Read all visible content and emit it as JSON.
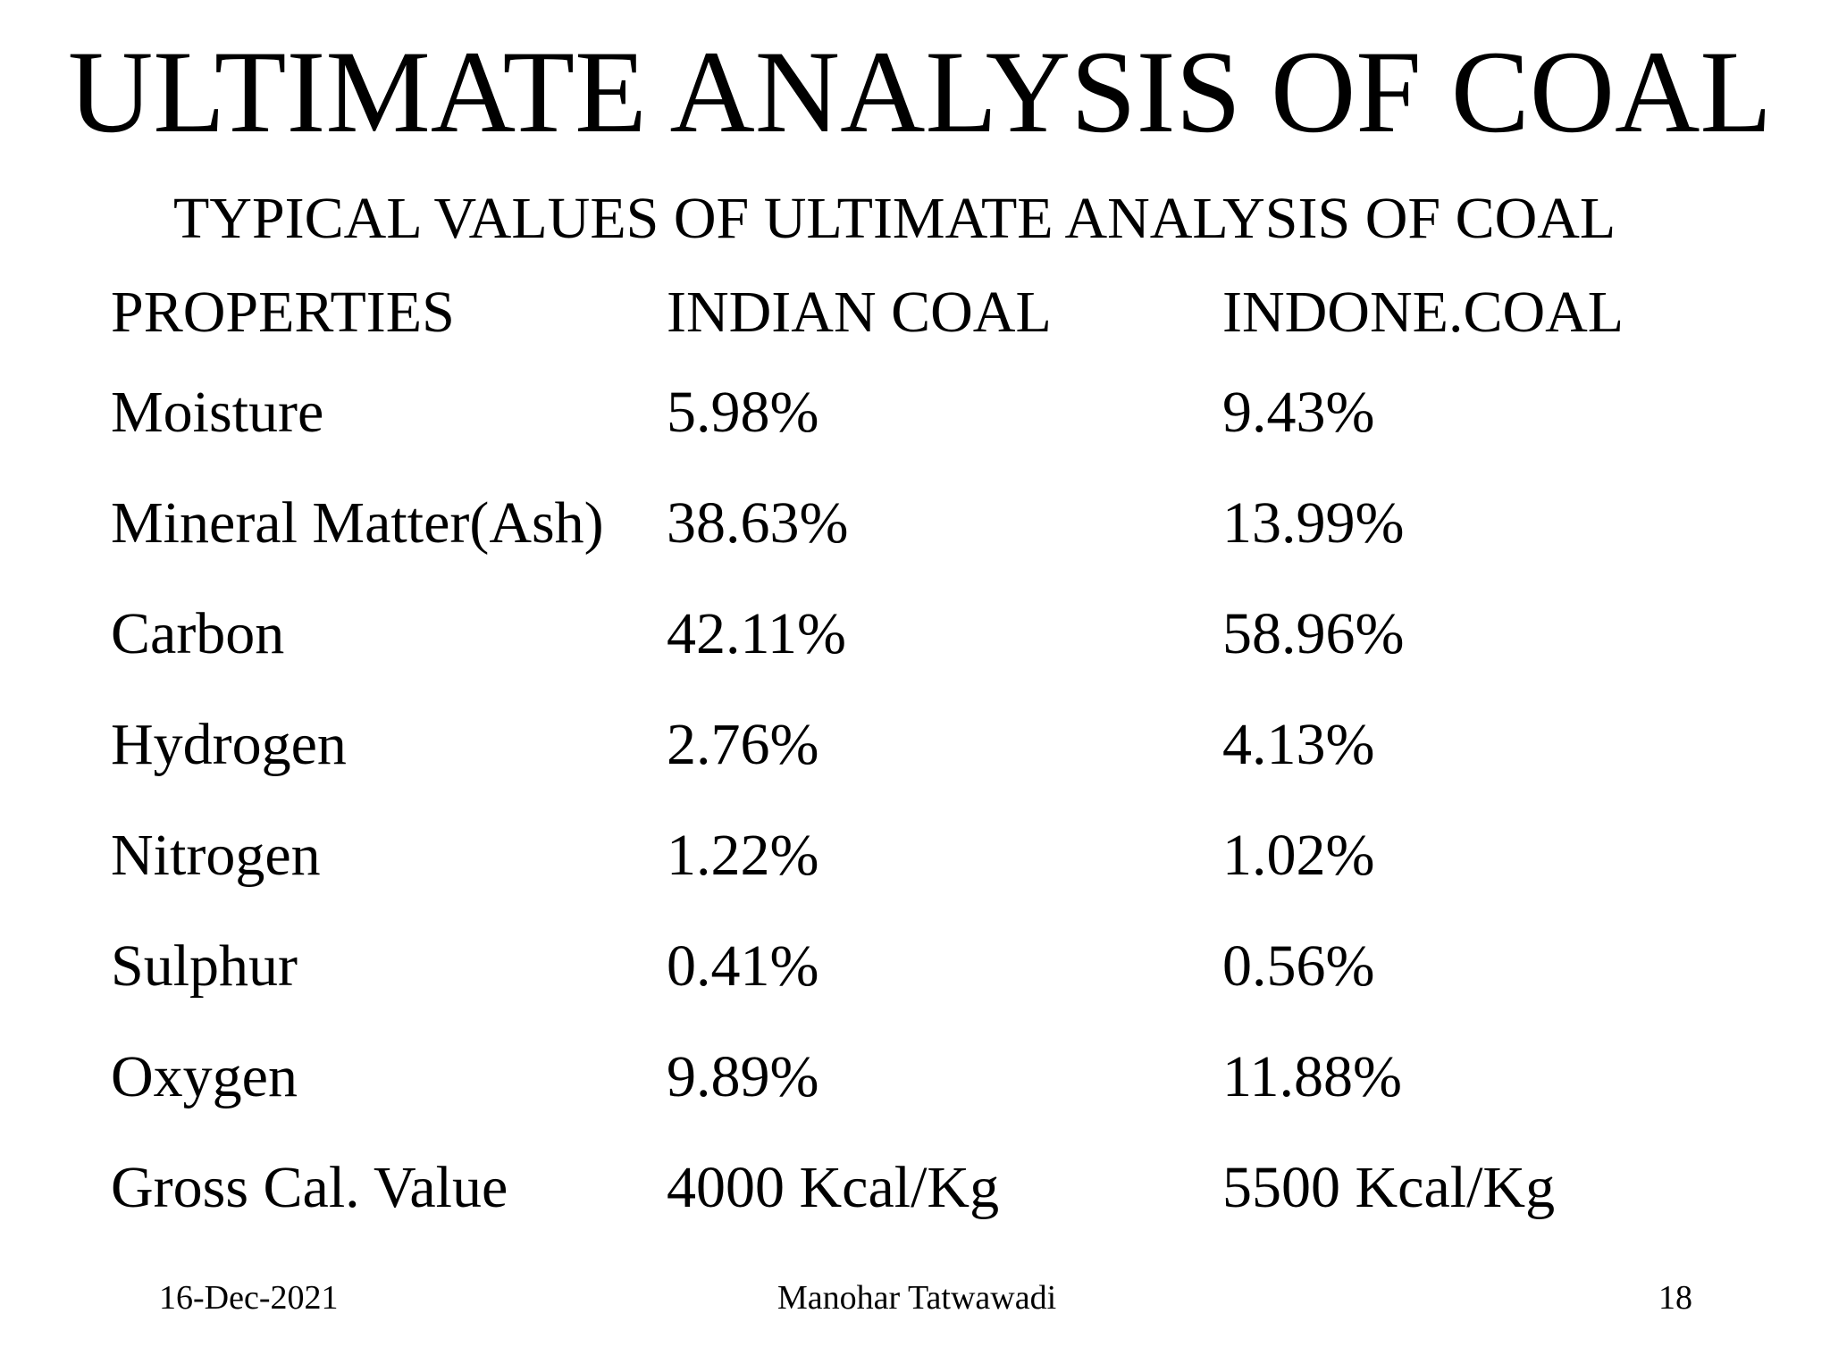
{
  "slide": {
    "title": "ULTIMATE ANALYSIS OF COAL",
    "subtitle": "TYPICAL VALUES OF ULTIMATE ANALYSIS OF COAL"
  },
  "table": {
    "headers": [
      "PROPERTIES",
      "INDIAN COAL",
      "INDONE.COAL"
    ],
    "rows": [
      [
        "Moisture",
        "5.98%",
        "9.43%"
      ],
      [
        "Mineral Matter(Ash)",
        "38.63%",
        "13.99%"
      ],
      [
        "Carbon",
        "42.11%",
        "58.96%"
      ],
      [
        "Hydrogen",
        "2.76%",
        "4.13%"
      ],
      [
        "Nitrogen",
        "1.22%",
        "1.02%"
      ],
      [
        "Sulphur",
        "0.41%",
        "0.56%"
      ],
      [
        "Oxygen",
        "9.89%",
        "11.88%"
      ],
      [
        "Gross Cal. Value",
        "4000 Kcal/Kg",
        "5500 Kcal/Kg"
      ]
    ]
  },
  "footer": {
    "date": "16-Dec-2021",
    "author": "Manohar Tatwawadi",
    "page_number": "18"
  }
}
